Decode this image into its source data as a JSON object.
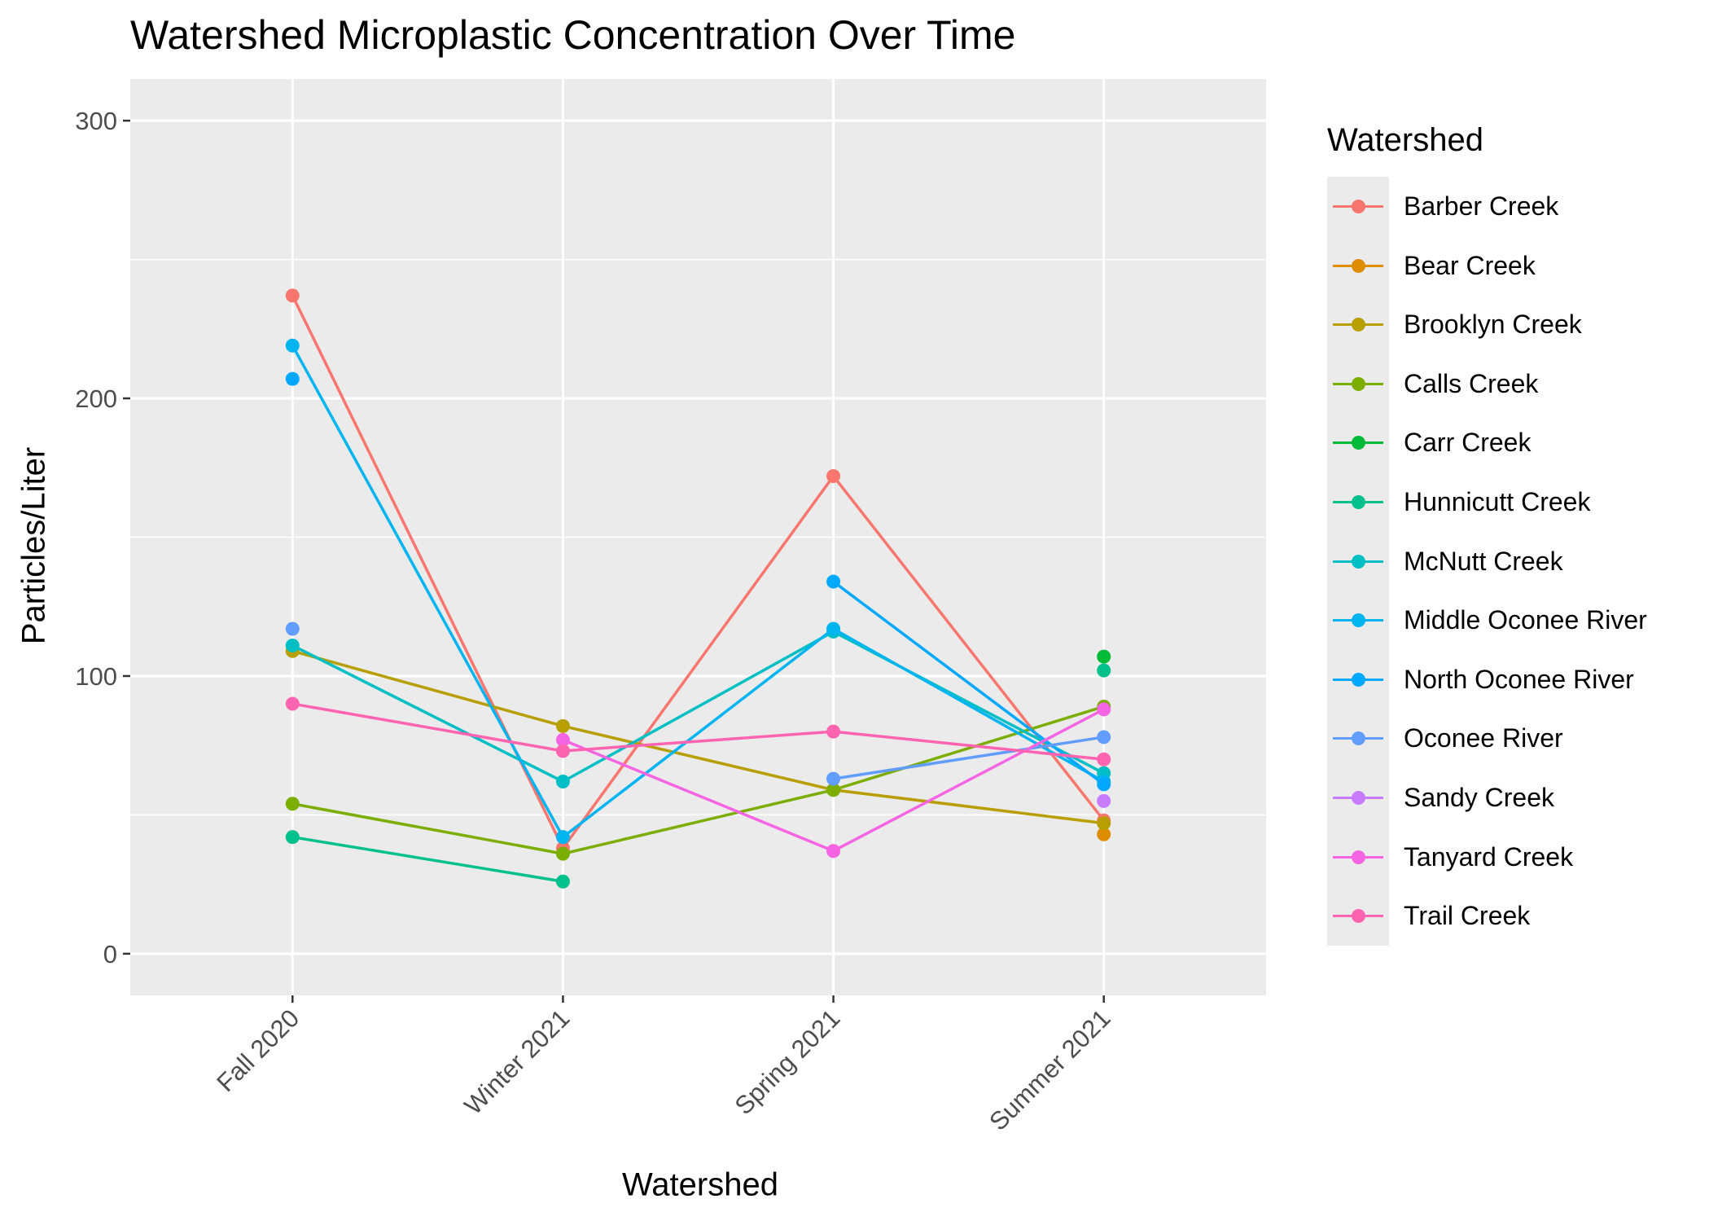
{
  "chart_data": {
    "type": "line",
    "title": "Watershed Microplastic Concentration Over Time",
    "xlabel": "Watershed",
    "ylabel": "Particles/Liter",
    "categories": [
      "Fall 2020",
      "Winter 2021",
      "Spring 2021",
      "Summer 2021"
    ],
    "ylim": [
      -15,
      315
    ],
    "yticks": [
      0,
      100,
      200,
      300
    ],
    "grid": true,
    "legend": {
      "title": "Watershed",
      "position": "right"
    },
    "series": [
      {
        "name": "Barber Creek",
        "color": "#F8766D",
        "values": [
          237,
          38,
          172,
          48
        ]
      },
      {
        "name": "Bear Creek",
        "color": "#DE8C00",
        "values": [
          null,
          null,
          null,
          43
        ]
      },
      {
        "name": "Brooklyn Creek",
        "color": "#B79F00",
        "values": [
          109,
          82,
          59,
          47
        ]
      },
      {
        "name": "Calls Creek",
        "color": "#7CAE00",
        "values": [
          54,
          36,
          59,
          89
        ]
      },
      {
        "name": "Carr Creek",
        "color": "#00BA38",
        "values": [
          null,
          null,
          null,
          107
        ]
      },
      {
        "name": "Hunnicutt Creek",
        "color": "#00C08B",
        "values": [
          42,
          26,
          null,
          102
        ]
      },
      {
        "name": "McNutt Creek",
        "color": "#00BFC4",
        "values": [
          111,
          62,
          116,
          65
        ]
      },
      {
        "name": "Middle Oconee River",
        "color": "#00B4F0",
        "values": [
          219,
          42,
          117,
          62
        ]
      },
      {
        "name": "North Oconee River",
        "color": "#00A9FF",
        "values": [
          207,
          null,
          134,
          61
        ]
      },
      {
        "name": "Oconee River",
        "color": "#619CFF",
        "values": [
          117,
          null,
          63,
          78
        ]
      },
      {
        "name": "Sandy Creek",
        "color": "#C77CFF",
        "values": [
          null,
          null,
          null,
          55
        ]
      },
      {
        "name": "Tanyard Creek",
        "color": "#F564E3",
        "values": [
          null,
          77,
          37,
          88
        ]
      },
      {
        "name": "Trail Creek",
        "color": "#FF64B0",
        "values": [
          90,
          73,
          80,
          70
        ]
      }
    ]
  }
}
